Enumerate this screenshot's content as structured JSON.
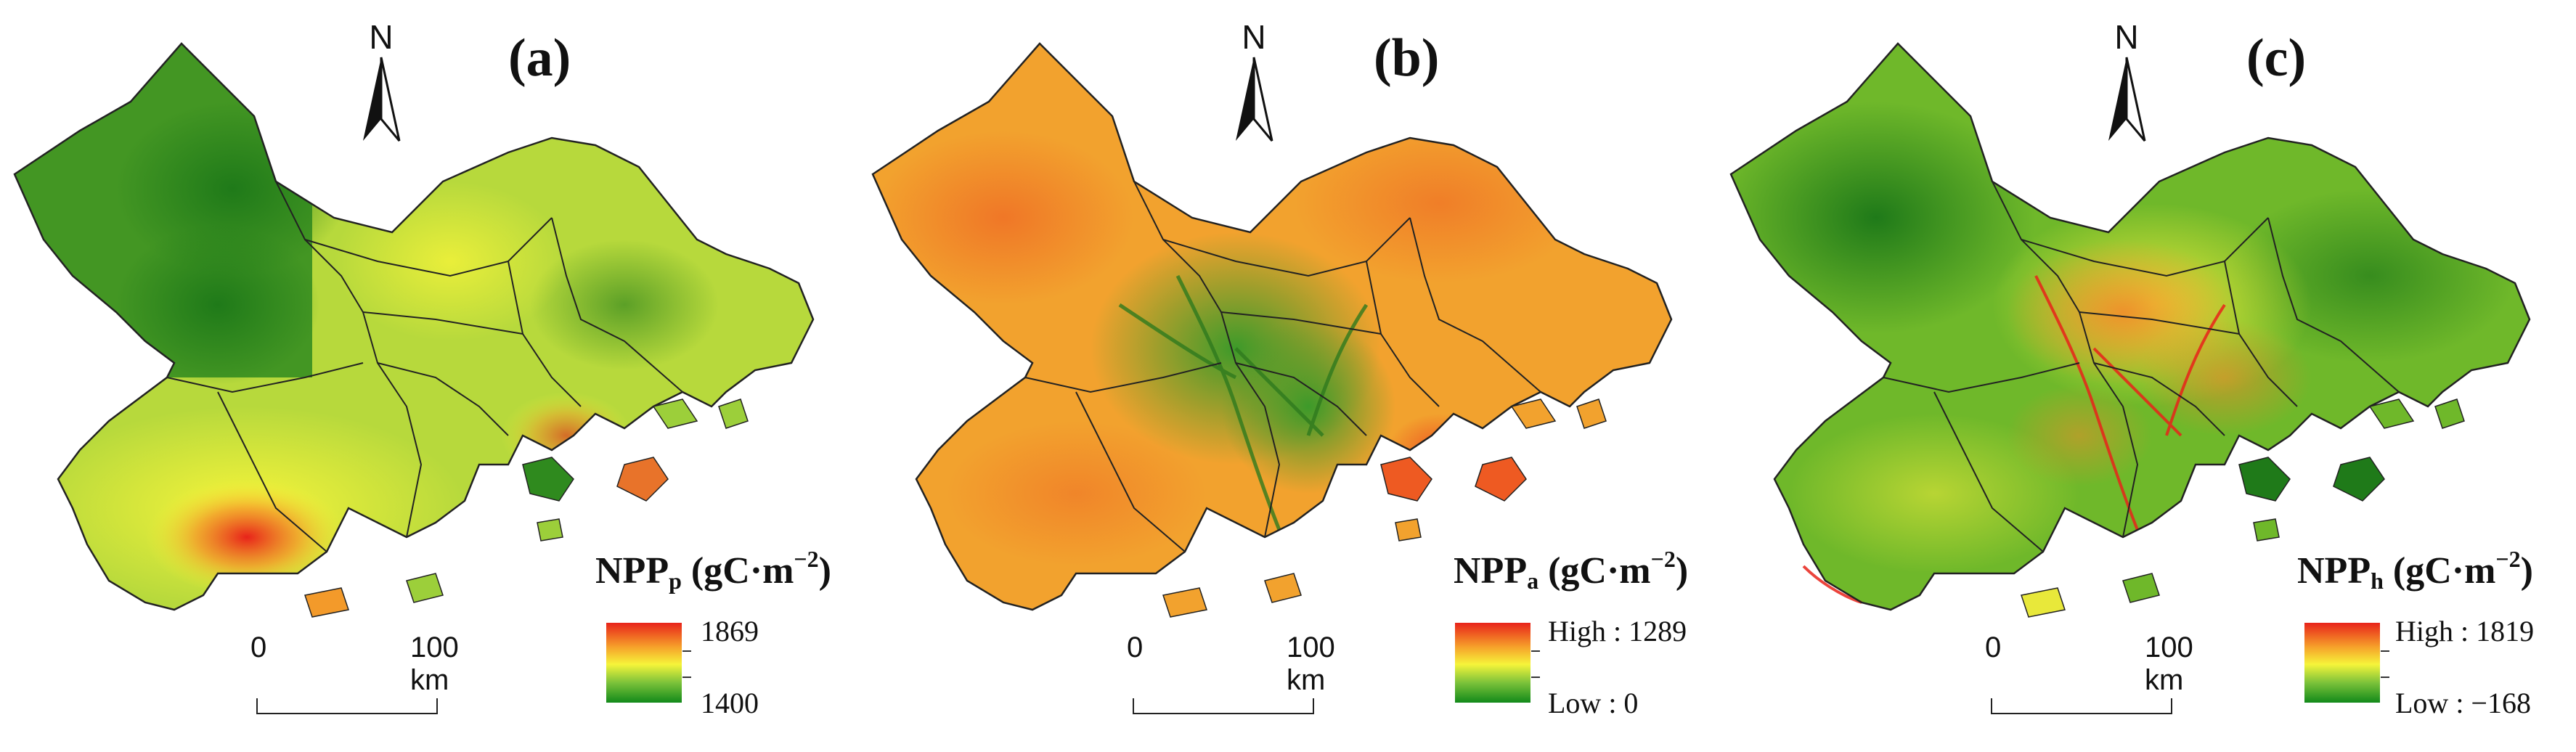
{
  "panels": [
    {
      "label": "(a)",
      "north": "N",
      "legend": {
        "title_main": "NPP",
        "title_sub": "p",
        "title_unit_open": " (gC·m",
        "title_sup": "−2",
        "title_close": ")",
        "high": "1869",
        "low": "1400"
      },
      "scale": {
        "start": "0",
        "end": "100 km"
      },
      "colors": {
        "base": "#9ccf3a",
        "dark": "#2f8a1e",
        "hot": "#e8331f"
      }
    },
    {
      "label": "(b)",
      "north": "N",
      "legend": {
        "title_main": "NPP",
        "title_sub": "a",
        "title_unit_open": " (gC·m",
        "title_sup": "−2",
        "title_close": ")",
        "high": "High : 1289",
        "low": "Low : 0"
      },
      "scale": {
        "start": "0",
        "end": "100 km"
      },
      "colors": {
        "base": "#f2a22e",
        "dark": "#3d9a2a",
        "hot": "#ee5a22"
      }
    },
    {
      "label": "(c)",
      "north": "N",
      "legend": {
        "title_main": "NPP",
        "title_sub": "h",
        "title_unit_open": " (gC·m",
        "title_sup": "−2",
        "title_close": ")",
        "high": "High : 1819",
        "low": "Low : −168"
      },
      "scale": {
        "start": "0",
        "end": "100 km"
      },
      "colors": {
        "base": "#7cbf2a",
        "dark": "#1f7a19",
        "hot": "#f08a2a"
      }
    }
  ],
  "ramp_colors": {
    "top": "#e8231a",
    "upper": "#f6a02a",
    "mid": "#f6f43a",
    "lower": "#7cc23a",
    "bottom": "#128a1a"
  }
}
